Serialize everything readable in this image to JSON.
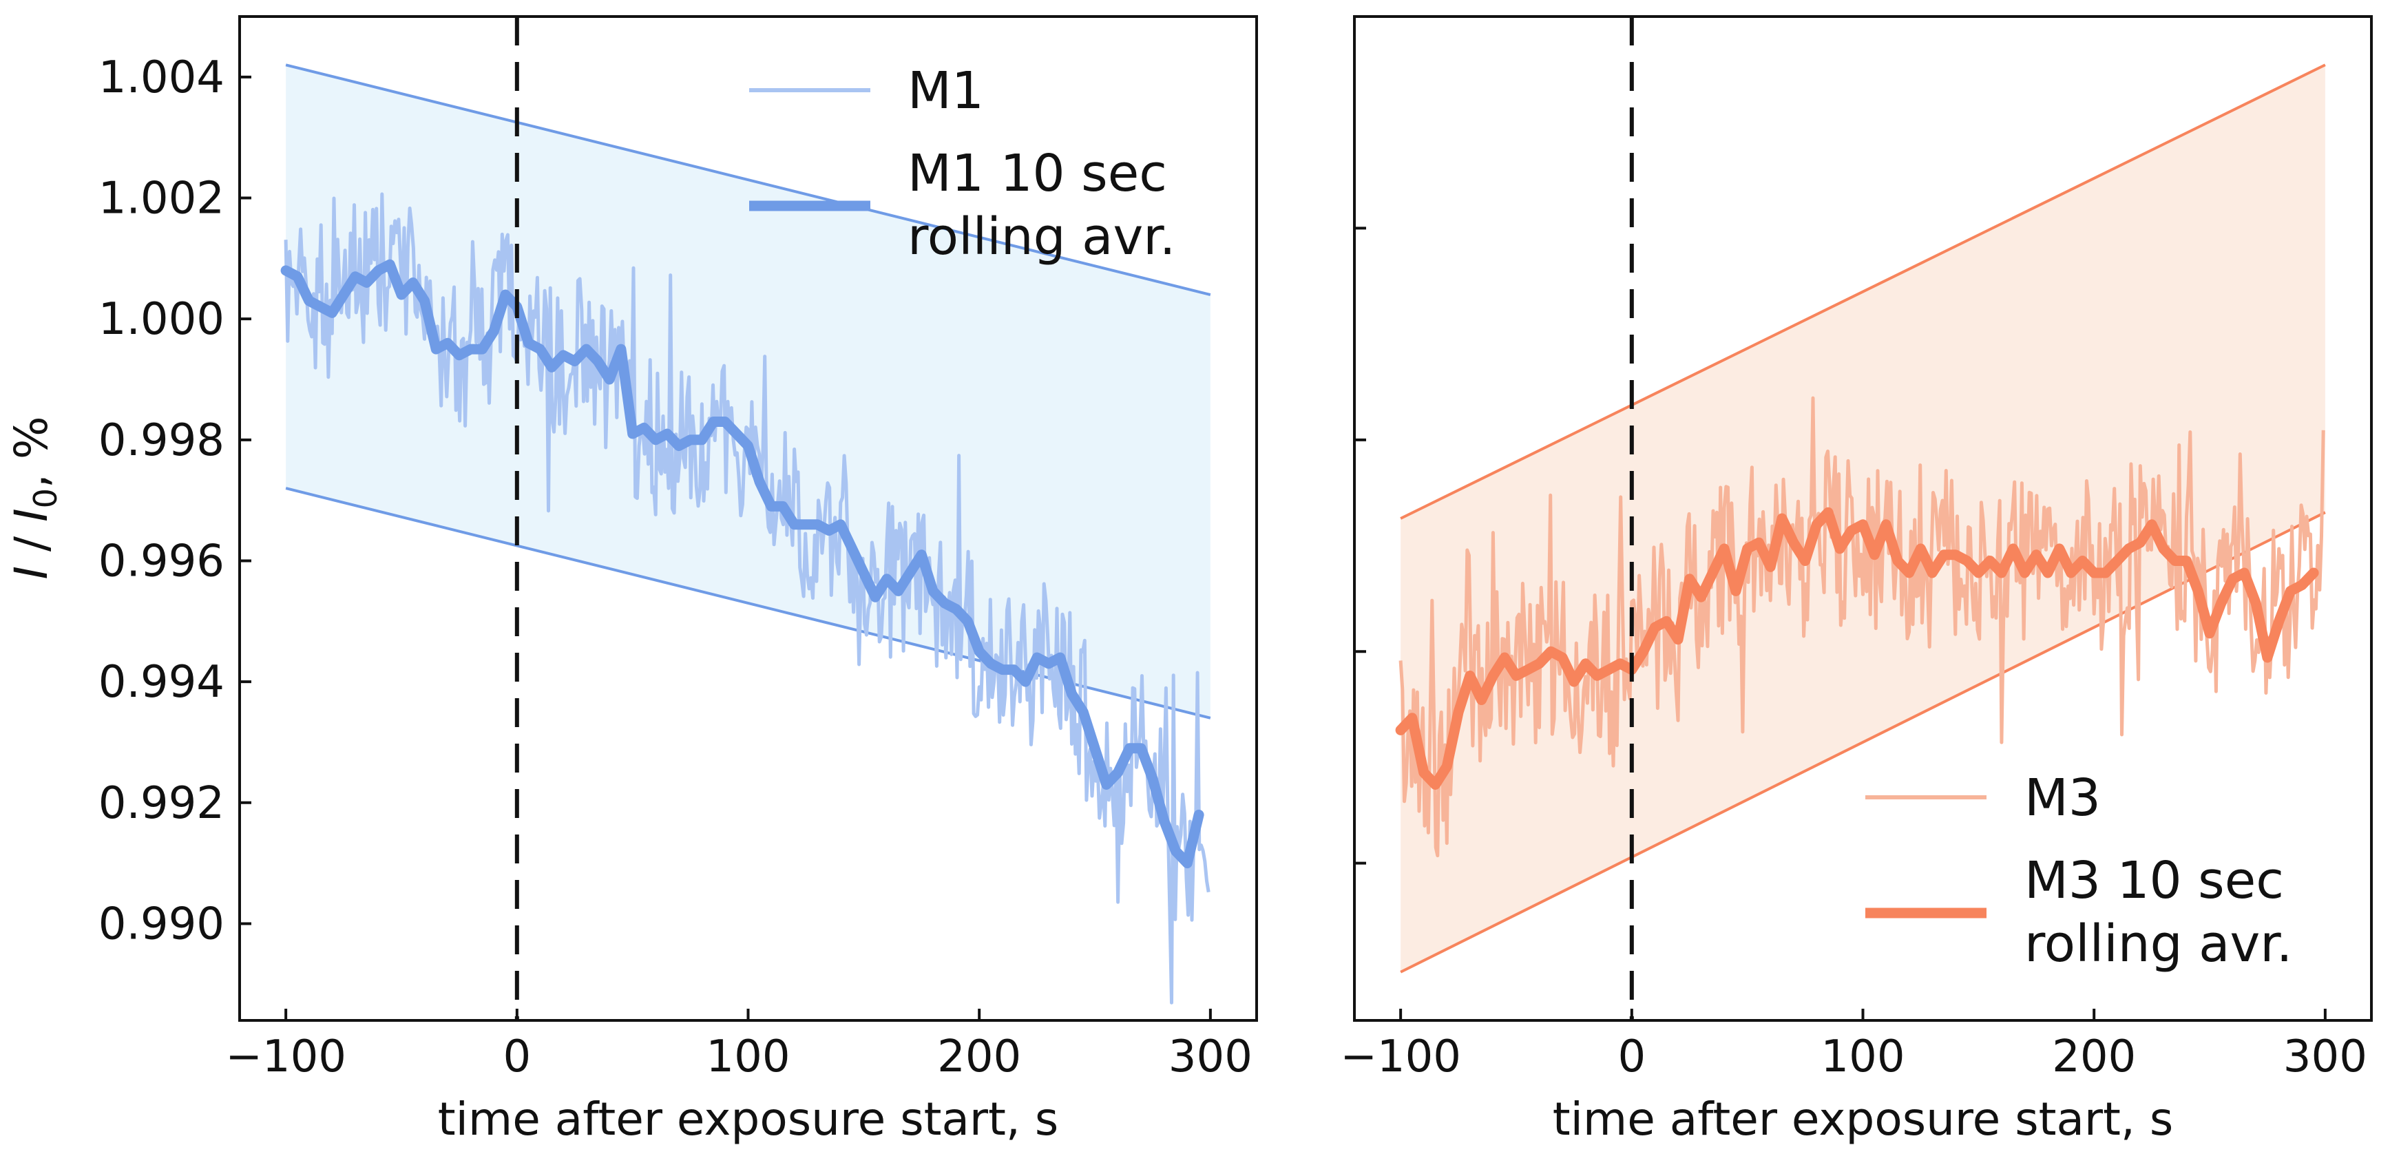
{
  "chart_data": [
    {
      "type": "line",
      "panel": "left",
      "title": "",
      "xlabel": "time after exposure start, s",
      "ylabel": "I / I₀, %",
      "ylabel_parts": {
        "italic_a": "I",
        "sep": " / ",
        "italic_b": "I",
        "sub": "0",
        "suffix": ", %"
      },
      "xlim": [
        -120,
        320
      ],
      "ylim": [
        0.9884,
        1.005
      ],
      "xticks": [
        -100,
        0,
        100,
        200,
        300
      ],
      "xtick_labels": [
        "−100",
        "0",
        "100",
        "200",
        "300"
      ],
      "yticks": [
        0.99,
        0.992,
        0.994,
        0.996,
        0.998,
        1.0,
        1.002,
        1.004
      ],
      "ytick_labels": [
        "0.990",
        "0.992",
        "0.994",
        "0.996",
        "0.998",
        "1.000",
        "1.002",
        "1.004"
      ],
      "show_ytick_labels": true,
      "grid": false,
      "vline_x": 0,
      "legend_position": "top-right",
      "legend": [
        "M1",
        "M1 10 sec\nrolling avr."
      ],
      "colors": {
        "raw": "#a9c4f2",
        "avg": "#6f9be6",
        "band_fill": "#e9f5fc",
        "band_edge": "#6f9be6"
      },
      "band": {
        "x": [
          -100,
          300
        ],
        "upper": [
          1.0042,
          1.0004
        ],
        "lower": [
          0.9972,
          0.9934
        ]
      },
      "noise_amplitude": 0.0013,
      "series": [
        {
          "name": "M1 10 sec rolling avr.",
          "x": [
            -100,
            -95,
            -90,
            -85,
            -80,
            -75,
            -70,
            -65,
            -60,
            -55,
            -50,
            -45,
            -40,
            -35,
            -30,
            -25,
            -20,
            -15,
            -10,
            -5,
            0,
            5,
            10,
            15,
            20,
            25,
            30,
            35,
            40,
            45,
            50,
            55,
            60,
            65,
            70,
            75,
            80,
            85,
            90,
            95,
            100,
            105,
            110,
            115,
            120,
            125,
            130,
            135,
            140,
            145,
            150,
            155,
            160,
            165,
            170,
            175,
            180,
            185,
            190,
            195,
            200,
            205,
            210,
            215,
            220,
            225,
            230,
            235,
            240,
            245,
            250,
            255,
            260,
            265,
            270,
            275,
            280,
            285,
            290,
            295
          ],
          "y": [
            1.0008,
            1.0007,
            1.0003,
            1.0002,
            1.0001,
            1.0004,
            1.0007,
            1.0006,
            1.0008,
            1.0009,
            1.0004,
            1.0006,
            1.0003,
            0.9995,
            0.9996,
            0.9994,
            0.9995,
            0.9995,
            0.9998,
            1.0004,
            1.0002,
            0.9996,
            0.9995,
            0.9992,
            0.9994,
            0.9993,
            0.9995,
            0.9993,
            0.999,
            0.9995,
            0.9981,
            0.9982,
            0.998,
            0.9981,
            0.9979,
            0.998,
            0.998,
            0.9983,
            0.9983,
            0.9981,
            0.9979,
            0.9973,
            0.9969,
            0.9969,
            0.9966,
            0.9966,
            0.9966,
            0.9965,
            0.9966,
            0.9962,
            0.9958,
            0.9954,
            0.9957,
            0.9955,
            0.9958,
            0.9961,
            0.9955,
            0.9953,
            0.9952,
            0.995,
            0.9945,
            0.9943,
            0.9942,
            0.9942,
            0.994,
            0.9944,
            0.9943,
            0.9944,
            0.9938,
            0.9935,
            0.9929,
            0.9923,
            0.9925,
            0.9929,
            0.9929,
            0.9924,
            0.9917,
            0.9912,
            0.991,
            0.9918
          ]
        }
      ]
    },
    {
      "type": "line",
      "panel": "right",
      "title": "",
      "xlabel": "time after exposure start, s",
      "ylabel": "",
      "xlim": [
        -120,
        320
      ],
      "ylim": [
        0.9884,
        1.005
      ],
      "xticks": [
        -100,
        0,
        100,
        200,
        300
      ],
      "xtick_labels": [
        "−100",
        "0",
        "100",
        "200",
        "300"
      ],
      "yticks": [
        0.991,
        0.9945,
        0.998,
        1.0015
      ],
      "ytick_labels": [],
      "show_ytick_labels": false,
      "grid": false,
      "vline_x": 0,
      "legend_position": "bottom-right",
      "legend": [
        "M3",
        "M3 10 sec\nrolling avr."
      ],
      "colors": {
        "raw": "#f7b499",
        "avg": "#f7845c",
        "band_fill": "#fcece2",
        "band_edge": "#f7845c"
      },
      "band": {
        "x": [
          -100,
          300
        ],
        "upper": [
          0.9967,
          1.0042
        ],
        "lower": [
          0.9892,
          0.9968
        ]
      },
      "noise_amplitude": 0.0014,
      "series": [
        {
          "name": "M3 10 sec rolling avr.",
          "x": [
            -100,
            -95,
            -90,
            -85,
            -80,
            -75,
            -70,
            -65,
            -60,
            -55,
            -50,
            -45,
            -40,
            -35,
            -30,
            -25,
            -20,
            -15,
            -10,
            -5,
            0,
            5,
            10,
            15,
            20,
            25,
            30,
            35,
            40,
            45,
            50,
            55,
            60,
            65,
            70,
            75,
            80,
            85,
            90,
            95,
            100,
            105,
            110,
            115,
            120,
            125,
            130,
            135,
            140,
            145,
            150,
            155,
            160,
            165,
            170,
            175,
            180,
            185,
            190,
            195,
            200,
            205,
            210,
            215,
            220,
            225,
            230,
            235,
            240,
            245,
            250,
            255,
            260,
            265,
            270,
            275,
            280,
            285,
            290,
            295
          ],
          "y": [
            0.9932,
            0.9934,
            0.9925,
            0.9923,
            0.9926,
            0.9935,
            0.9941,
            0.9937,
            0.9941,
            0.9944,
            0.9941,
            0.9942,
            0.9943,
            0.9945,
            0.9944,
            0.994,
            0.9943,
            0.9941,
            0.9942,
            0.9943,
            0.9942,
            0.9945,
            0.9949,
            0.995,
            0.9947,
            0.9957,
            0.9954,
            0.9958,
            0.9962,
            0.9955,
            0.9962,
            0.9963,
            0.9959,
            0.9967,
            0.9963,
            0.996,
            0.9966,
            0.9968,
            0.9962,
            0.9965,
            0.9966,
            0.9961,
            0.9966,
            0.996,
            0.9958,
            0.9962,
            0.9958,
            0.9961,
            0.9961,
            0.996,
            0.9958,
            0.996,
            0.9958,
            0.9962,
            0.9958,
            0.9961,
            0.9958,
            0.9962,
            0.9958,
            0.996,
            0.9958,
            0.9958,
            0.996,
            0.9962,
            0.9963,
            0.9966,
            0.9962,
            0.996,
            0.996,
            0.9955,
            0.9948,
            0.9953,
            0.9957,
            0.9958,
            0.9953,
            0.9944,
            0.995,
            0.9955,
            0.9956,
            0.9958
          ]
        }
      ]
    }
  ]
}
